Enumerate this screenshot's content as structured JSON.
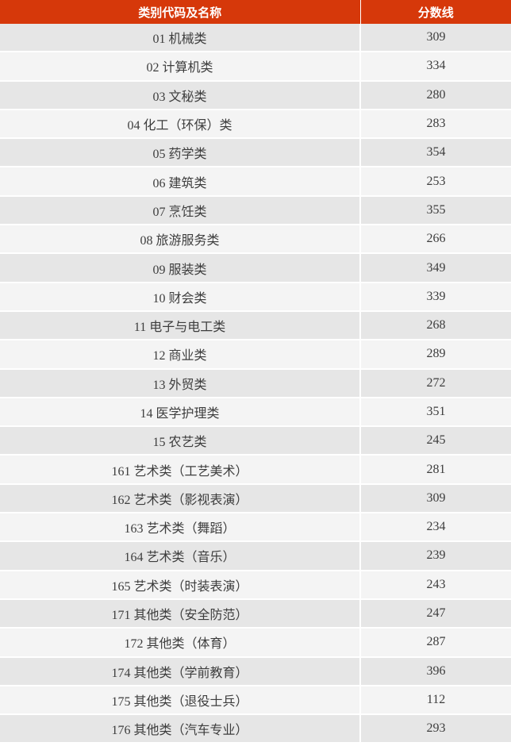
{
  "table": {
    "headers": [
      "类别代码及名称",
      "分数线"
    ],
    "header_color": "#d6380a",
    "rows": [
      {
        "category": "01 机械类",
        "score": "309"
      },
      {
        "category": "02 计算机类",
        "score": "334"
      },
      {
        "category": "03 文秘类",
        "score": "280"
      },
      {
        "category": "04 化工（环保）类",
        "score": "283"
      },
      {
        "category": "05 药学类",
        "score": "354"
      },
      {
        "category": "06 建筑类",
        "score": "253"
      },
      {
        "category": "07 烹饪类",
        "score": "355"
      },
      {
        "category": "08 旅游服务类",
        "score": "266"
      },
      {
        "category": "09 服装类",
        "score": "349"
      },
      {
        "category": "10 财会类",
        "score": "339"
      },
      {
        "category": "11 电子与电工类",
        "score": "268"
      },
      {
        "category": "12 商业类",
        "score": "289"
      },
      {
        "category": "13 外贸类",
        "score": "272"
      },
      {
        "category": "14 医学护理类",
        "score": "351"
      },
      {
        "category": "15 农艺类",
        "score": "245"
      },
      {
        "category": "161 艺术类（工艺美术）",
        "score": "281"
      },
      {
        "category": "162 艺术类（影视表演）",
        "score": "309"
      },
      {
        "category": "163 艺术类（舞蹈）",
        "score": "234"
      },
      {
        "category": "164 艺术类（音乐）",
        "score": "239"
      },
      {
        "category": "165 艺术类（时装表演）",
        "score": "243"
      },
      {
        "category": "171 其他类（安全防范）",
        "score": "247"
      },
      {
        "category": "172 其他类（体育）",
        "score": "287"
      },
      {
        "category": "174 其他类（学前教育）",
        "score": "396"
      },
      {
        "category": "175 其他类（退役士兵）",
        "score": "112"
      },
      {
        "category": "176 其他类（汽车专业）",
        "score": "293"
      }
    ]
  }
}
